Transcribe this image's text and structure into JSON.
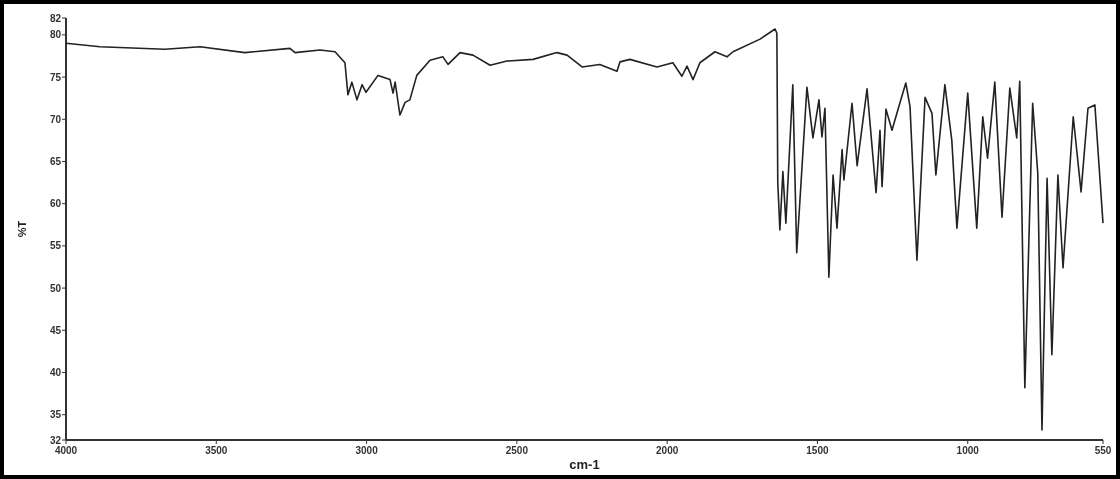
{
  "chart_data": {
    "type": "line",
    "xlabel": "cm-1",
    "ylabel": "%T",
    "xlim": [
      4000,
      550
    ],
    "ylim": [
      32,
      82
    ],
    "xticks": [
      4000,
      3500,
      3000,
      2500,
      2000,
      1500,
      1000,
      550
    ],
    "yticks": [
      32,
      35,
      40,
      45,
      50,
      55,
      60,
      65,
      70,
      75,
      80,
      82
    ],
    "grid": false,
    "marker": "none",
    "line_style": "solid",
    "series": [
      {
        "color": "#222222",
        "x": [
          4000,
          3887,
          3671,
          3554,
          3405,
          3255,
          3238,
          3155,
          3105,
          3072,
          3062,
          3049,
          3032,
          3015,
          3002,
          2962,
          2922,
          2912,
          2905,
          2889,
          2872,
          2856,
          2833,
          2789,
          2746,
          2729,
          2689,
          2646,
          2589,
          2533,
          2446,
          2367,
          2333,
          2283,
          2224,
          2167,
          2157,
          2124,
          2034,
          1981,
          1951,
          1934,
          1914,
          1891,
          1841,
          1801,
          1781,
          1691,
          1641,
          1635,
          1632,
          1625,
          1615,
          1605,
          1582,
          1569,
          1535,
          1515,
          1495,
          1485,
          1475,
          1462,
          1448,
          1435,
          1418,
          1412,
          1385,
          1368,
          1335,
          1305,
          1292,
          1285,
          1272,
          1252,
          1226,
          1206,
          1192,
          1169,
          1142,
          1119,
          1106,
          1076,
          1053,
          1036,
          1000,
          970,
          950,
          934,
          910,
          886,
          860,
          837,
          827,
          810,
          784,
          767,
          753,
          736,
          720,
          700,
          683,
          649,
          623,
          600,
          577,
          550
        ],
        "values": [
          79.0,
          78.6,
          78.3,
          78.6,
          77.9,
          78.4,
          77.9,
          78.2,
          78.0,
          76.7,
          72.9,
          74.4,
          72.3,
          74.1,
          73.2,
          75.2,
          74.7,
          73.1,
          74.4,
          70.5,
          72.0,
          72.3,
          75.2,
          77.0,
          77.4,
          76.5,
          77.9,
          77.6,
          76.4,
          76.9,
          77.1,
          77.9,
          77.6,
          76.2,
          76.5,
          75.7,
          76.8,
          77.1,
          76.2,
          76.7,
          75.1,
          76.3,
          74.7,
          76.7,
          78.0,
          77.4,
          78.0,
          79.5,
          80.7,
          80.2,
          62.5,
          56.9,
          63.8,
          57.7,
          74.1,
          54.2,
          73.8,
          67.8,
          72.3,
          67.9,
          71.3,
          51.3,
          63.4,
          57.1,
          66.4,
          62.8,
          71.9,
          64.5,
          73.6,
          61.3,
          68.7,
          62.0,
          71.2,
          68.7,
          71.9,
          74.3,
          71.5,
          53.3,
          72.6,
          70.7,
          63.4,
          74.1,
          67.5,
          57.1,
          73.1,
          57.1,
          70.3,
          65.4,
          74.4,
          58.4,
          73.7,
          67.8,
          74.5,
          38.2,
          71.9,
          63.6,
          33.2,
          63.0,
          42.1,
          63.4,
          52.4,
          70.3,
          61.4,
          71.3,
          71.7,
          57.7
        ]
      }
    ]
  }
}
